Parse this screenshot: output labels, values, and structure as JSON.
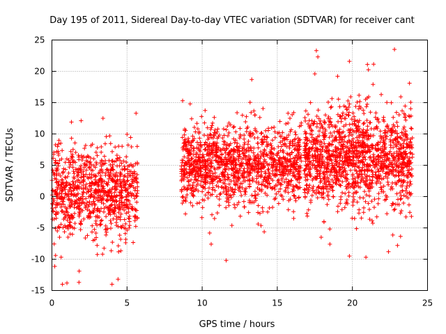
{
  "chart_data": {
    "type": "scatter",
    "title": "Day 195 of 2011, Sidereal Day-to-day VTEC variation (SDTVAR) for receiver cant",
    "xlabel": "GPS time / hours",
    "ylabel": "SDTVAR / TECUs",
    "xlim": [
      0,
      25
    ],
    "ylim": [
      -15,
      25
    ],
    "xticks": [
      0,
      5,
      10,
      15,
      20,
      25
    ],
    "yticks": [
      -15,
      -10,
      -5,
      0,
      5,
      10,
      15,
      20,
      25
    ],
    "grid": true,
    "marker": "+",
    "color": "#ff0000",
    "series": [
      {
        "name": "SDTVAR",
        "clusters": [
          {
            "x_range": [
              0.0,
              5.7
            ],
            "center": 0.5,
            "spread": 3.5,
            "count": 900
          },
          {
            "x_range": [
              8.6,
              16.6
            ],
            "center": 5.0,
            "spread": 3.2,
            "count": 1300
          },
          {
            "x_range": [
              16.8,
              24.0
            ],
            "center": 6.0,
            "spread": 4.0,
            "count": 1400
          }
        ],
        "points": [
          [
            0.7,
            -14.0
          ],
          [
            1.0,
            -13.8
          ],
          [
            1.8,
            -13.7
          ],
          [
            4.0,
            -14.0
          ],
          [
            4.4,
            -13.2
          ],
          [
            3.4,
            12.5
          ],
          [
            1.3,
            11.9
          ],
          [
            5.6,
            13.3
          ],
          [
            8.7,
            15.3
          ],
          [
            9.2,
            14.8
          ],
          [
            13.3,
            18.7
          ],
          [
            11.6,
            -10.2
          ],
          [
            10.6,
            -7.6
          ],
          [
            17.6,
            23.3
          ],
          [
            17.7,
            22.3
          ],
          [
            19.8,
            21.6
          ],
          [
            21.0,
            21.1
          ],
          [
            22.8,
            23.5
          ],
          [
            23.8,
            18.1
          ],
          [
            20.9,
            -9.7
          ],
          [
            19.8,
            -9.5
          ],
          [
            17.5,
            19.6
          ],
          [
            18.5,
            -7.6
          ],
          [
            22.4,
            -8.8
          ],
          [
            23.0,
            -7.8
          ]
        ]
      }
    ]
  }
}
